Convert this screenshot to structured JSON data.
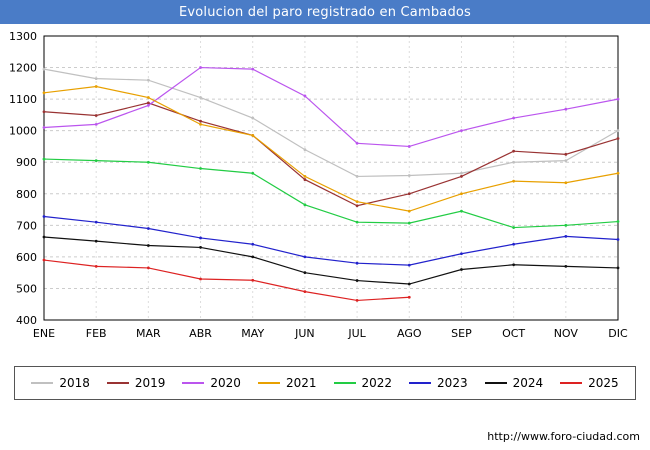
{
  "title": "Evolucion del paro registrado en Cambados",
  "colors": {
    "title_bar": "#4a7cc7",
    "grid": "#cccccc",
    "axis": "#000000"
  },
  "footer": {
    "url": "http://www.foro-ciudad.com"
  },
  "chart_data": {
    "type": "line",
    "title": "Evolucion del paro registrado en Cambados",
    "xlabel": "",
    "ylabel": "",
    "categories": [
      "ENE",
      "FEB",
      "MAR",
      "ABR",
      "MAY",
      "JUN",
      "JUL",
      "AGO",
      "SEP",
      "OCT",
      "NOV",
      "DIC"
    ],
    "ylim": [
      400,
      1300
    ],
    "ytick_step": 100,
    "grid": true,
    "legend_position": "bottom",
    "series": [
      {
        "name": "2018",
        "color": "#c0c0c0",
        "values": [
          1195,
          1165,
          1160,
          1105,
          1040,
          940,
          855,
          858,
          865,
          900,
          905,
          1000
        ]
      },
      {
        "name": "2019",
        "color": "#993333",
        "values": [
          1060,
          1048,
          1088,
          1030,
          985,
          845,
          762,
          800,
          855,
          935,
          925,
          975
        ]
      },
      {
        "name": "2020",
        "color": "#bb55ee",
        "values": [
          1010,
          1020,
          1080,
          1200,
          1195,
          1110,
          960,
          950,
          1000,
          1040,
          1068,
          1100
        ]
      },
      {
        "name": "2021",
        "color": "#e8a000",
        "values": [
          1120,
          1140,
          1105,
          1020,
          985,
          855,
          775,
          745,
          800,
          840,
          835,
          865
        ]
      },
      {
        "name": "2022",
        "color": "#22cc44",
        "values": [
          910,
          905,
          900,
          880,
          865,
          765,
          710,
          707,
          745,
          693,
          700,
          712
        ]
      },
      {
        "name": "2023",
        "color": "#2222cc",
        "values": [
          728,
          710,
          690,
          660,
          640,
          600,
          580,
          574,
          610,
          640,
          665,
          655
        ]
      },
      {
        "name": "2024",
        "color": "#111111",
        "values": [
          663,
          650,
          636,
          630,
          600,
          550,
          525,
          514,
          560,
          575,
          570,
          565
        ]
      },
      {
        "name": "2025",
        "color": "#dd2222",
        "values": [
          590,
          570,
          565,
          530,
          526,
          490,
          462,
          472
        ]
      }
    ]
  }
}
